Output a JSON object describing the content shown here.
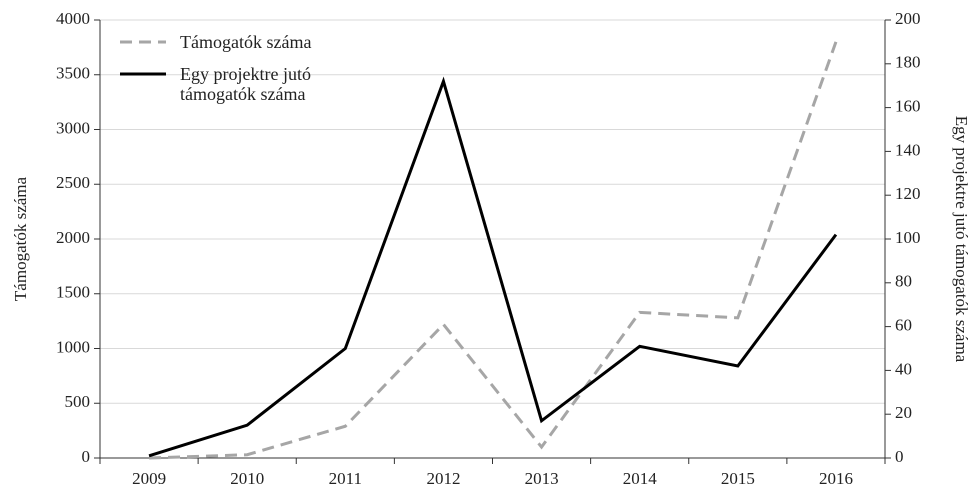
{
  "chart_data": {
    "type": "line",
    "categories": [
      "2009",
      "2010",
      "2011",
      "2012",
      "2013",
      "2014",
      "2015",
      "2016"
    ],
    "series": [
      {
        "name": "Támogatók száma",
        "color": "#a6a6a6",
        "dash": "dashed",
        "values": [
          0,
          30,
          290,
          1220,
          100,
          1330,
          1280,
          3800
        ]
      },
      {
        "name": "Egy projektre jutó támogatók száma",
        "color": "#000000",
        "dash": "solid",
        "axis": "y2",
        "values": [
          1,
          15,
          50,
          172,
          17,
          51,
          42,
          102
        ]
      }
    ],
    "ylabel": "Támogatók száma",
    "y2label": "Egy projektre jutó támogatók száma",
    "ylim": [
      0,
      4000
    ],
    "yticks": [
      0,
      500,
      1000,
      1500,
      2000,
      2500,
      3000,
      3500,
      4000
    ],
    "y2lim": [
      0,
      200
    ],
    "y2ticks": [
      0,
      20,
      40,
      60,
      80,
      100,
      120,
      140,
      160,
      180,
      200
    ],
    "grid": true,
    "legend": "upper left"
  }
}
